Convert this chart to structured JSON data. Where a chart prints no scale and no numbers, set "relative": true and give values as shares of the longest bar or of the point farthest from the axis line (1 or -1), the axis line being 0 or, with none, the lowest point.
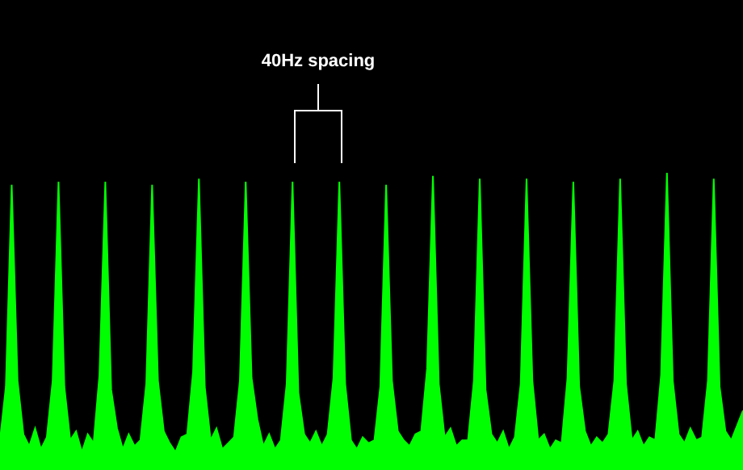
{
  "chart_data": {
    "type": "area",
    "relative": true,
    "categories": [
      null,
      null,
      null,
      null,
      null,
      null,
      null,
      null,
      null,
      null,
      null,
      null,
      null,
      null,
      null,
      null,
      null,
      null,
      null,
      null,
      null,
      null,
      null,
      null,
      null,
      null,
      null,
      null,
      null,
      null,
      null,
      null,
      null,
      null,
      null,
      null,
      null,
      null,
      null,
      null,
      null,
      null,
      null,
      null,
      null,
      null,
      null,
      null,
      null,
      null,
      null,
      null,
      null,
      null,
      null,
      null,
      null,
      null,
      null,
      null,
      null,
      null,
      null,
      null,
      null,
      null,
      null,
      null,
      null,
      null,
      null,
      null,
      null,
      null,
      null,
      null,
      null,
      null,
      null,
      null,
      null,
      null,
      null,
      null,
      null,
      null,
      null,
      null,
      null,
      null,
      null,
      null,
      null,
      null,
      null,
      null,
      null,
      null,
      null,
      null,
      null,
      null,
      null,
      null,
      null,
      null,
      null,
      null,
      null,
      null,
      null,
      null,
      null,
      null,
      null,
      null,
      null,
      null,
      null,
      null,
      null,
      null,
      null,
      null,
      null,
      null,
      null,
      null
    ],
    "series": [
      {
        "color": "#00ff00",
        "values": [
          0.1,
          0.28,
          0.96,
          0.3,
          0.12,
          0.08,
          0.14,
          0.07,
          0.11,
          0.3,
          0.97,
          0.28,
          0.1,
          0.13,
          0.06,
          0.12,
          0.09,
          0.32,
          0.97,
          0.27,
          0.14,
          0.07,
          0.12,
          0.08,
          0.1,
          0.29,
          0.96,
          0.3,
          0.13,
          0.09,
          0.06,
          0.11,
          0.12,
          0.33,
          0.98,
          0.28,
          0.1,
          0.14,
          0.07,
          0.09,
          0.11,
          0.3,
          0.97,
          0.31,
          0.17,
          0.08,
          0.12,
          0.07,
          0.1,
          0.29,
          0.97,
          0.26,
          0.12,
          0.09,
          0.13,
          0.08,
          0.12,
          0.31,
          0.97,
          0.29,
          0.1,
          0.07,
          0.11,
          0.09,
          0.1,
          0.28,
          0.96,
          0.3,
          0.13,
          0.1,
          0.08,
          0.12,
          0.13,
          0.34,
          0.99,
          0.29,
          0.11,
          0.14,
          0.08,
          0.1,
          0.1,
          0.3,
          0.98,
          0.27,
          0.12,
          0.09,
          0.13,
          0.07,
          0.11,
          0.29,
          0.98,
          0.3,
          0.1,
          0.12,
          0.07,
          0.1,
          0.09,
          0.31,
          0.97,
          0.28,
          0.13,
          0.08,
          0.11,
          0.09,
          0.12,
          0.3,
          0.98,
          0.29,
          0.1,
          0.13,
          0.08,
          0.11,
          0.1,
          0.32,
          1,
          0.3,
          0.12,
          0.09,
          0.14,
          0.1,
          0.11,
          0.3,
          0.98,
          0.28,
          0.13,
          0.1,
          0.15,
          0.2
        ]
      }
    ],
    "annotations": [
      "40Hz spacing"
    ]
  }
}
